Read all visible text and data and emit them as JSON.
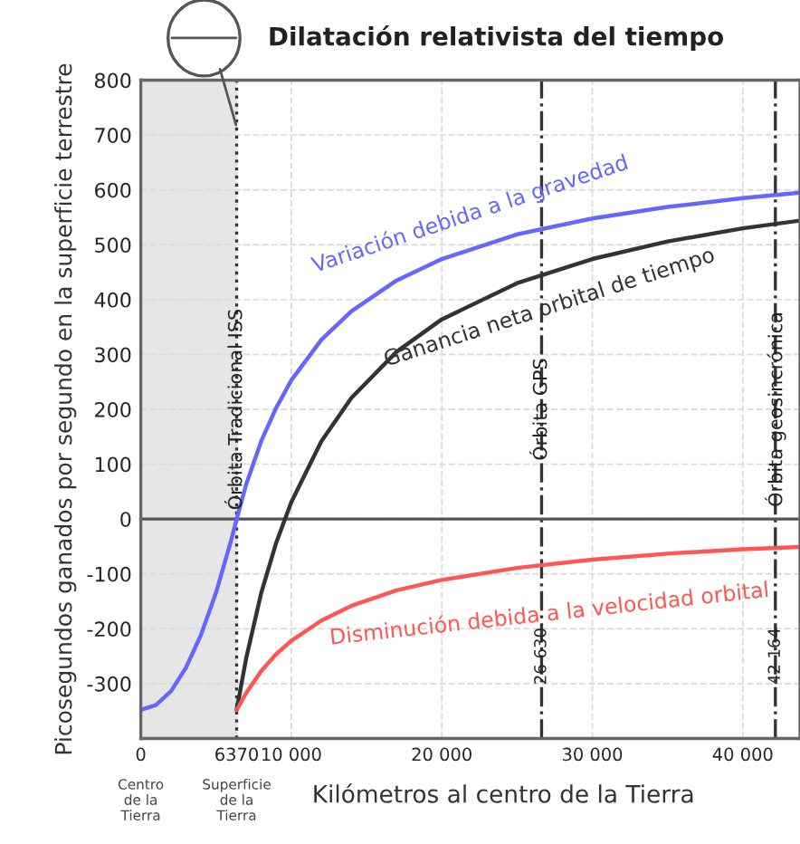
{
  "chart_data": {
    "type": "line",
    "title": "Dilatación relativista del tiempo",
    "xlabel": "Kilómetros al centro de la Tierra",
    "ylabel": "Picosegundos ganados por segundo en la superficie terrestre",
    "series": [
      {
        "name": "Variación debida a la gravedad",
        "color": "#6666ff",
        "x": [
          0,
          1000,
          2000,
          3000,
          4000,
          5000,
          6000,
          6370,
          7000,
          8000,
          9000,
          10000,
          12000,
          14000,
          17000,
          20000,
          25000,
          30000,
          35000,
          40000,
          43800
        ],
        "values": [
          -348,
          -339,
          -314,
          -271,
          -211,
          -134,
          -39,
          0,
          63,
          142,
          203,
          253,
          327,
          379,
          435,
          474,
          519,
          548,
          569,
          585,
          595
        ]
      },
      {
        "name": "Ganancia neta orbital de tiempo",
        "color": "#333333",
        "x": [
          6370,
          7000,
          8000,
          9000,
          10000,
          12000,
          14000,
          17000,
          20000,
          25000,
          30000,
          35000,
          40000,
          43800
        ],
        "values": [
          -348,
          -254,
          -135,
          -43,
          31,
          142,
          221,
          305,
          364,
          430,
          474,
          506,
          530,
          544
        ]
      },
      {
        "name": "Disminución debida a la velocidad orbital",
        "color": "#ff5555",
        "x": [
          6370,
          7000,
          8000,
          9000,
          10000,
          12000,
          14000,
          17000,
          20000,
          25000,
          30000,
          35000,
          40000,
          43800
        ],
        "values": [
          -348,
          -317,
          -277,
          -246,
          -222,
          -185,
          -158,
          -130,
          -111,
          -89,
          -74,
          -63,
          -55,
          -51
        ]
      }
    ],
    "xlim": [
      0,
      43800
    ],
    "xticks": [
      0,
      {
        "value": 6370,
        "label": "6370"
      },
      {
        "value": 10000,
        "label": "10 000"
      },
      {
        "value": 20000,
        "label": "20 000"
      },
      {
        "value": 30000,
        "label": "30 000"
      },
      {
        "value": 40000,
        "label": "40 000"
      }
    ],
    "ylim": [
      -400,
      800
    ],
    "yticks": [
      -300,
      -200,
      -100,
      0,
      100,
      200,
      300,
      400,
      500,
      600,
      700,
      800
    ],
    "grid": true,
    "ref_lines": [
      {
        "axis": "x",
        "value": 6370,
        "label": "Órbita Tradicional ISS",
        "color": "#333333",
        "line_style": "dotted"
      },
      {
        "axis": "x",
        "value": 26630,
        "label": "Órbita GPS",
        "color": "#333333",
        "line_style": "dashed"
      },
      {
        "axis": "x",
        "value": 42164,
        "label": "Órbita geosincrónica",
        "color": "#333333",
        "line_style": "dashed"
      },
      {
        "axis": "y",
        "value": 0,
        "color": "#555555",
        "line_style": "solid"
      }
    ],
    "bands": [
      {
        "axis": "x",
        "from": 0,
        "to": 6370,
        "color": "#e6e6e6"
      }
    ],
    "annotations": [
      {
        "text": "26 630",
        "x": 26630,
        "y": -250
      },
      {
        "text": "42 164",
        "x": 42164,
        "y": -250
      },
      "Centro\nde la\nTierra",
      "Superficie\nde la\nTierra"
    ]
  }
}
